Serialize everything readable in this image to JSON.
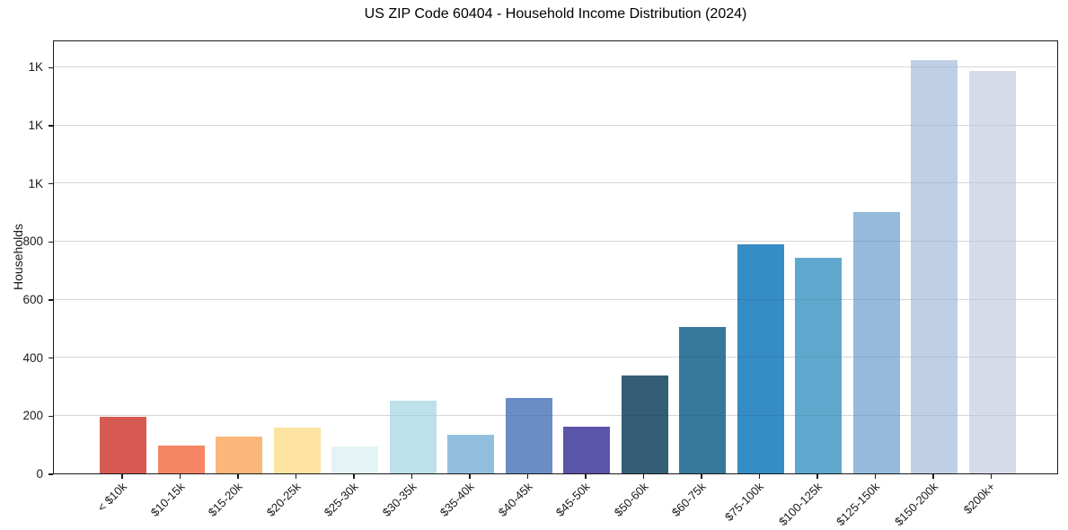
{
  "chart_data": {
    "type": "bar",
    "title": "US ZIP Code 60404 - Household Income Distribution (2024)",
    "xlabel": "",
    "ylabel": "Households",
    "categories": [
      "< $10k",
      "$10-15k",
      "$15-20k",
      "$20-25k",
      "$25-30k",
      "$30-35k",
      "$35-40k",
      "$40-45k",
      "$45-50k",
      "$50-60k",
      "$60-75k",
      "$75-100k",
      "$100-125k",
      "$125-150k",
      "$150-200k",
      "$200k+"
    ],
    "values": [
      195,
      96,
      127,
      158,
      92,
      250,
      133,
      260,
      161,
      337,
      504,
      788,
      741,
      900,
      1423,
      1386
    ],
    "bar_colors": [
      "#d65a52",
      "#f58565",
      "#fbb779",
      "#fde3a0",
      "#e4f3f6",
      "#bee0ea",
      "#92bedd",
      "#6b8dc6",
      "#5b55a9",
      "#335e76",
      "#37799c",
      "#368cc4",
      "#5fa8cd",
      "#95badb",
      "#bfcfe6",
      "#d7dae9"
    ],
    "ylim": [
      0,
      1494
    ],
    "yticks": {
      "values": [
        0,
        200,
        400,
        600,
        800,
        1000,
        1200,
        1400
      ],
      "labels": [
        "0",
        "200",
        "400",
        "600",
        "800",
        "1K",
        "1K",
        "1K"
      ]
    },
    "grid": "horizontal",
    "gridline_color": "#e6e6e6",
    "spine_color": "#1a1a1a",
    "text_color": "#1a1a1a",
    "background": "#ffffff",
    "legend": "none",
    "x_label_rotation_deg": 45
  }
}
